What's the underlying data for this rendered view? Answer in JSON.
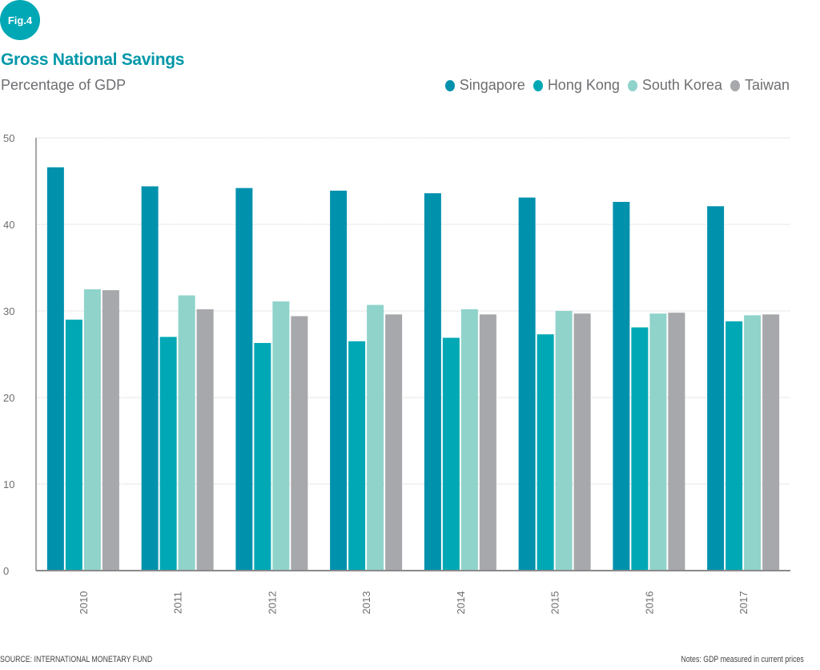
{
  "badge": "Fig.4",
  "chart_data": {
    "type": "bar",
    "title": "Gross National Savings",
    "subtitle": "Percentage of GDP",
    "categories": [
      "2010",
      "2011",
      "2012",
      "2013",
      "2014",
      "2015",
      "2016",
      "2017"
    ],
    "series": [
      {
        "name": "Singapore",
        "color": "#0091ad",
        "values": [
          46.6,
          44.4,
          44.2,
          43.9,
          43.6,
          43.1,
          42.6,
          42.1
        ]
      },
      {
        "name": "Hong Kong",
        "color": "#00a8b5",
        "values": [
          29.0,
          27.0,
          26.3,
          26.5,
          26.9,
          27.3,
          28.1,
          28.8
        ]
      },
      {
        "name": "South Korea",
        "color": "#8fd3cb",
        "values": [
          32.5,
          31.8,
          31.1,
          30.7,
          30.2,
          30.0,
          29.7,
          29.5
        ]
      },
      {
        "name": "Taiwan",
        "color": "#a7a8ab",
        "values": [
          32.4,
          30.2,
          29.4,
          29.6,
          29.6,
          29.7,
          29.8,
          29.6
        ]
      }
    ],
    "ylim": [
      0,
      50
    ],
    "yticks": [
      "0",
      "10",
      "20",
      "30",
      "40",
      "50"
    ],
    "grid": true,
    "legend_position": "top-right"
  },
  "footer": {
    "source": "SOURCE: INTERNATIONAL MONETARY FUND",
    "notes": "Notes: GDP measured in current prices"
  }
}
